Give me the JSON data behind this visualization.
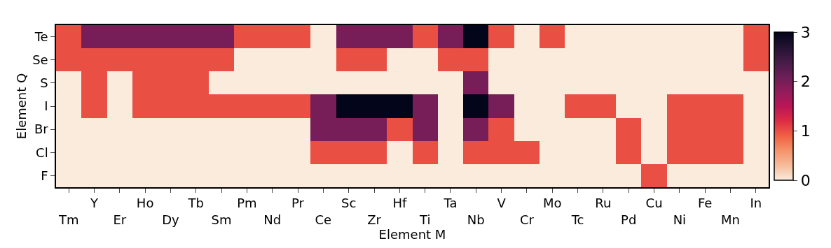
{
  "chart_data": {
    "type": "heatmap",
    "xlabel": "Element M",
    "ylabel": "Element Q",
    "categories": [
      "Tm",
      "Y",
      "Er",
      "Ho",
      "Dy",
      "Tb",
      "Sm",
      "Pm",
      "Nd",
      "Pr",
      "Ce",
      "Sc",
      "Zr",
      "Hf",
      "Ti",
      "Ta",
      "Nb",
      "V",
      "Cr",
      "Mo",
      "Tc",
      "Ru",
      "Pd",
      "Cu",
      "Ni",
      "Fe",
      "Mn",
      "In"
    ],
    "y_categories": [
      "Te",
      "Se",
      "S",
      "I",
      "Br",
      "Cl",
      "F"
    ],
    "cells": [
      [
        1,
        2,
        2,
        2,
        2,
        2,
        2,
        1,
        1,
        1,
        0,
        2,
        2,
        2,
        1,
        2,
        3,
        1,
        0,
        1,
        0,
        0,
        0,
        0,
        0,
        0,
        0,
        1
      ],
      [
        1,
        1,
        1,
        1,
        1,
        1,
        1,
        0,
        0,
        0,
        0,
        1,
        1,
        0,
        0,
        1,
        1,
        0,
        0,
        0,
        0,
        0,
        0,
        0,
        0,
        0,
        0,
        1
      ],
      [
        0,
        1,
        0,
        1,
        1,
        1,
        0,
        0,
        0,
        0,
        0,
        0,
        0,
        0,
        0,
        0,
        2,
        0,
        0,
        0,
        0,
        0,
        0,
        0,
        0,
        0,
        0,
        0
      ],
      [
        0,
        1,
        0,
        1,
        1,
        1,
        1,
        1,
        1,
        1,
        2,
        3,
        3,
        3,
        2,
        0,
        3,
        2,
        0,
        0,
        1,
        1,
        0,
        0,
        1,
        1,
        1,
        0
      ],
      [
        0,
        0,
        0,
        0,
        0,
        0,
        0,
        0,
        0,
        0,
        2,
        2,
        2,
        1,
        2,
        0,
        2,
        1,
        0,
        0,
        0,
        0,
        1,
        0,
        1,
        1,
        1,
        0
      ],
      [
        0,
        0,
        0,
        0,
        0,
        0,
        0,
        0,
        0,
        0,
        1,
        1,
        1,
        0,
        1,
        0,
        1,
        1,
        1,
        0,
        0,
        0,
        1,
        0,
        1,
        1,
        1,
        0
      ],
      [
        0,
        0,
        0,
        0,
        0,
        0,
        0,
        0,
        0,
        0,
        0,
        0,
        0,
        0,
        0,
        0,
        0,
        0,
        0,
        0,
        0,
        0,
        0,
        1,
        0,
        0,
        0,
        0
      ]
    ],
    "clim": [
      0,
      3
    ],
    "cticks": [
      0,
      1,
      2,
      3
    ]
  }
}
